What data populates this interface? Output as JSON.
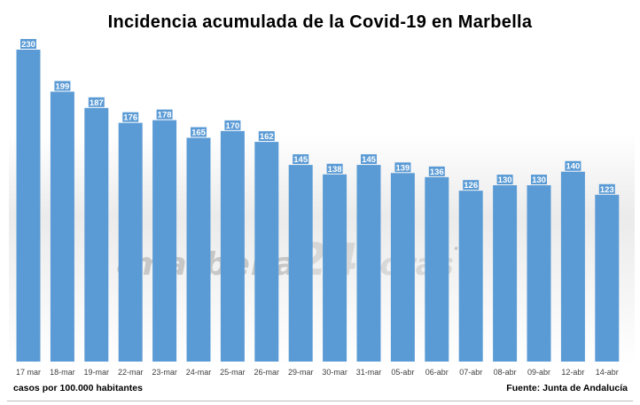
{
  "chart_data": {
    "type": "bar",
    "title": "Incidencia acumulada de la Covid-19 en Marbella",
    "categories": [
      "17 mar",
      "18-mar",
      "19-mar",
      "22-mar",
      "23-mar",
      "24-mar",
      "25-mar",
      "26-mar",
      "29-mar",
      "30-mar",
      "31-mar",
      "05-abr",
      "06-abr",
      "07-abr",
      "08-abr",
      "09-abr",
      "12-abr",
      "14-abr"
    ],
    "values": [
      230,
      199,
      187,
      176,
      178,
      165,
      170,
      162,
      145,
      138,
      145,
      139,
      136,
      126,
      130,
      130,
      140,
      123
    ],
    "ylim": [
      0,
      240
    ],
    "grid": false,
    "legend": "none",
    "bar_color": "#5B9BD5",
    "label_bg": "#5B9BD5",
    "label_color": "#ffffff"
  },
  "footer": {
    "left": "casos por 100.000 habitantes",
    "right": "Fuente: Junta de Andalucía"
  },
  "watermark": {
    "copyright": "©",
    "part1": "marbella",
    "part2": "24",
    "part3": "horas",
    "part4": ".es"
  }
}
